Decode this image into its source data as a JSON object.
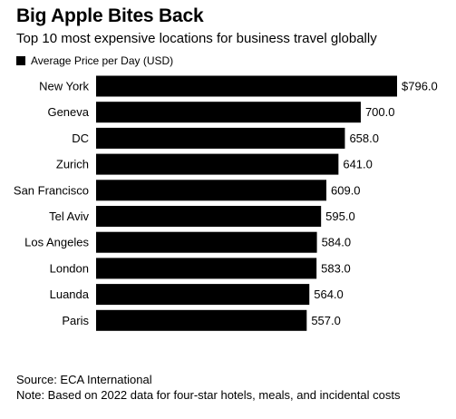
{
  "chart_data": {
    "type": "bar",
    "orientation": "horizontal",
    "title": "Big Apple Bites Back",
    "subtitle": "Top 10 most expensive locations for business travel globally",
    "legend": [
      "Average Price per Day (USD)"
    ],
    "legend_position": "top-left",
    "categories": [
      "New York",
      "Geneva",
      "DC",
      "Zurich",
      "San Francisco",
      "Tel Aviv",
      "Los Angeles",
      "London",
      "Luanda",
      "Paris"
    ],
    "values": [
      796.0,
      700.0,
      658.0,
      641.0,
      609.0,
      595.0,
      584.0,
      583.0,
      564.0,
      557.0
    ],
    "value_labels": [
      "$796.0",
      "700.0",
      "658.0",
      "641.0",
      "609.0",
      "595.0",
      "584.0",
      "583.0",
      "564.0",
      "557.0"
    ],
    "xlim": [
      0,
      796
    ],
    "grid": false,
    "bar_color": "#000000"
  },
  "footer": {
    "source": "Source: ECA International",
    "note": "Note: Based on 2022 data for four-star hotels, meals, and incidental costs"
  }
}
